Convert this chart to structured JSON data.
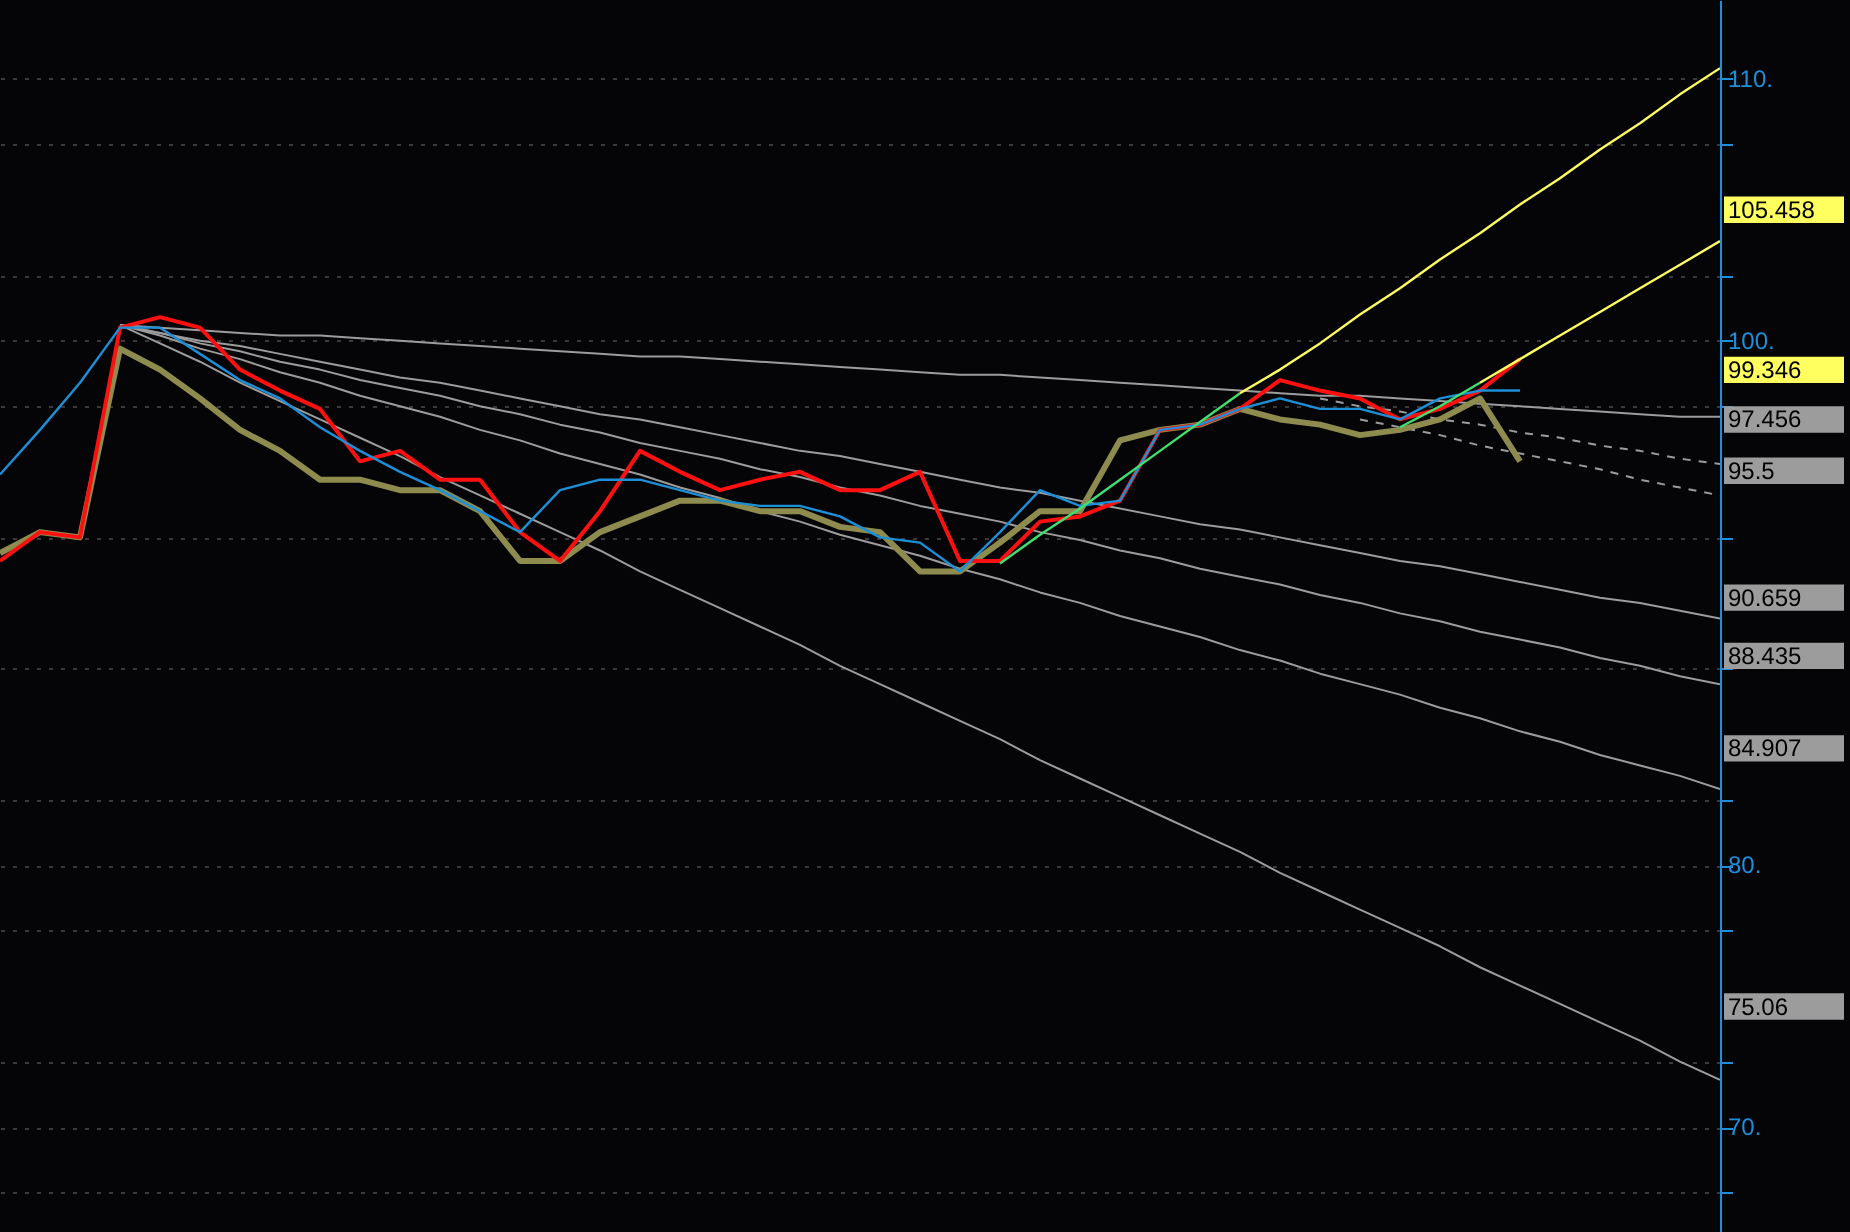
{
  "chart_data": {
    "type": "line",
    "categories": [
      null,
      null,
      null,
      null,
      null,
      null,
      null,
      null,
      null,
      null,
      null,
      null,
      null,
      null,
      null,
      null,
      null,
      null,
      null,
      null,
      null,
      null,
      null,
      null,
      null,
      null,
      null,
      null,
      null,
      null,
      null,
      null,
      null,
      null,
      null,
      null,
      null,
      null,
      null,
      null,
      null,
      null,
      null,
      null
    ],
    "ylim": [
      66,
      113
    ],
    "yticks": [
      {
        "value": 67.5,
        "label": null
      },
      {
        "value": 70,
        "label": "70."
      },
      {
        "value": 72.5,
        "label": null
      },
      {
        "value": 77.5,
        "label": null
      },
      {
        "value": 80,
        "label": "80."
      },
      {
        "value": 82.5,
        "label": null
      },
      {
        "value": 87.5,
        "label": null
      },
      {
        "value": 92.5,
        "label": null
      },
      {
        "value": 97.5,
        "label": null
      },
      {
        "value": 100,
        "label": "100."
      },
      {
        "value": 102.5,
        "label": null
      },
      {
        "value": 107.5,
        "label": null
      },
      {
        "value": 110,
        "label": "110."
      }
    ],
    "grid": "y",
    "tick_labels": "y",
    "series": [
      {
        "color": "#9c9c9c",
        "values": [
          null,
          null,
          null,
          100.6,
          100.5,
          100.4,
          100.3,
          100.2,
          100.2,
          100.1,
          100.0,
          99.9,
          99.8,
          99.7,
          99.6,
          99.5,
          99.4,
          99.4,
          99.3,
          99.2,
          99.1,
          99.0,
          98.9,
          98.8,
          98.7,
          98.7,
          98.6,
          98.5,
          98.4,
          98.3,
          98.2,
          98.1,
          98.0,
          97.9,
          97.9,
          97.8,
          97.7,
          97.6,
          97.5,
          97.4,
          97.3,
          97.2,
          97.1,
          97.1
        ]
      },
      {
        "color": "#9c9c9c",
        "values": [
          null,
          null,
          null,
          100.6,
          100.3,
          100.0,
          99.8,
          99.5,
          99.2,
          98.9,
          98.6,
          98.4,
          98.1,
          97.8,
          97.5,
          97.2,
          97.0,
          96.7,
          96.4,
          96.1,
          95.8,
          95.6,
          95.3,
          95.0,
          94.7,
          94.4,
          94.2,
          93.9,
          93.6,
          93.3,
          93.0,
          92.8,
          92.5,
          92.2,
          91.9,
          91.6,
          91.4,
          91.1,
          90.8,
          90.5,
          90.2,
          90.0,
          89.7,
          89.4
        ]
      },
      {
        "color": "#9c9c9c",
        "values": [
          null,
          null,
          null,
          100.6,
          100.3,
          99.9,
          99.6,
          99.2,
          98.9,
          98.5,
          98.2,
          97.9,
          97.5,
          97.2,
          96.8,
          96.5,
          96.1,
          95.8,
          95.5,
          95.1,
          94.8,
          94.4,
          94.1,
          93.7,
          93.4,
          93.1,
          92.7,
          92.4,
          92.0,
          91.7,
          91.3,
          91.0,
          90.7,
          90.3,
          90.0,
          89.6,
          89.3,
          88.9,
          88.6,
          88.3,
          87.9,
          87.6,
          87.2,
          86.9
        ]
      },
      {
        "color": "#9c9c9c",
        "values": [
          null,
          null,
          null,
          100.6,
          100.2,
          99.7,
          99.3,
          98.8,
          98.4,
          97.9,
          97.5,
          97.1,
          96.6,
          96.2,
          95.7,
          95.3,
          94.9,
          94.4,
          94.0,
          93.5,
          93.1,
          92.6,
          92.2,
          91.8,
          91.3,
          90.9,
          90.4,
          90.0,
          89.5,
          89.1,
          88.7,
          88.2,
          87.8,
          87.3,
          86.9,
          86.5,
          86.0,
          85.6,
          85.1,
          84.7,
          84.2,
          83.8,
          83.4,
          82.9
        ]
      },
      {
        "color": "#9c9c9c",
        "values": [
          null,
          null,
          null,
          100.6,
          99.9,
          99.2,
          98.4,
          97.7,
          97.0,
          96.3,
          95.6,
          94.8,
          94.1,
          93.4,
          92.7,
          92.0,
          91.2,
          90.5,
          89.8,
          89.1,
          88.4,
          87.6,
          86.9,
          86.2,
          85.5,
          84.8,
          84.0,
          83.3,
          82.6,
          81.9,
          81.2,
          80.5,
          79.7,
          79.0,
          78.3,
          77.6,
          76.9,
          76.1,
          75.4,
          74.7,
          74.0,
          73.3,
          72.5,
          71.8
        ]
      },
      {
        "color": "#9c9c9c",
        "line_style": "dashed",
        "values": [
          null,
          null,
          null,
          null,
          null,
          null,
          null,
          null,
          null,
          null,
          null,
          null,
          null,
          null,
          null,
          null,
          null,
          null,
          null,
          null,
          null,
          null,
          null,
          null,
          null,
          null,
          null,
          null,
          null,
          null,
          null,
          null,
          null,
          97.8,
          97.5,
          97.3,
          97.0,
          96.8,
          96.5,
          96.3,
          96.0,
          95.8,
          95.5,
          95.3
        ]
      },
      {
        "color": "#9c9c9c",
        "line_style": "dashed",
        "values": [
          null,
          null,
          null,
          null,
          null,
          null,
          null,
          null,
          null,
          null,
          null,
          null,
          null,
          null,
          null,
          null,
          null,
          null,
          null,
          null,
          null,
          null,
          null,
          null,
          null,
          null,
          null,
          null,
          null,
          null,
          null,
          null,
          null,
          null,
          97.0,
          96.7,
          96.4,
          96.0,
          95.7,
          95.4,
          95.1,
          94.7,
          94.4,
          94.1
        ]
      },
      {
        "color": "#8e8b4e",
        "values": [
          91.9,
          92.7,
          92.5,
          99.7,
          98.9,
          97.8,
          96.6,
          95.8,
          94.7,
          94.7,
          94.3,
          94.3,
          93.5,
          91.6,
          91.6,
          92.7,
          93.3,
          93.9,
          93.9,
          93.5,
          93.5,
          92.9,
          92.7,
          91.2,
          91.2,
          92.3,
          93.5,
          93.5,
          96.2,
          96.6,
          96.8,
          97.4,
          97.0,
          96.8,
          96.4,
          96.6,
          97.0,
          97.8,
          95.4,
          null,
          null,
          null,
          null,
          null
        ]
      },
      {
        "color": "#ff1010",
        "values": [
          91.6,
          92.7,
          92.5,
          100.5,
          100.9,
          100.5,
          98.9,
          98.1,
          97.4,
          95.4,
          95.8,
          94.7,
          94.7,
          92.7,
          91.6,
          93.5,
          95.8,
          95.0,
          94.3,
          94.7,
          95.0,
          94.3,
          94.3,
          95.0,
          91.6,
          91.6,
          93.1,
          93.3,
          93.9,
          96.6,
          96.8,
          97.4,
          98.5,
          98.1,
          97.8,
          97.0,
          97.4,
          98.1,
          99.3,
          null,
          null,
          null,
          null,
          null
        ]
      },
      {
        "color": "#1c8fd6",
        "values": [
          94.9,
          96.6,
          98.4,
          100.5,
          100.5,
          99.5,
          98.5,
          97.8,
          96.7,
          95.8,
          95.0,
          94.3,
          93.5,
          92.7,
          94.3,
          94.7,
          94.7,
          94.3,
          93.9,
          93.7,
          93.7,
          93.3,
          92.5,
          92.3,
          91.2,
          92.7,
          94.3,
          93.7,
          93.9,
          96.6,
          96.8,
          97.4,
          97.8,
          97.4,
          97.4,
          97.0,
          97.8,
          98.1,
          98.1,
          null,
          null,
          null,
          null,
          null
        ]
      },
      {
        "color": "#40e070",
        "values": [
          null,
          null,
          null,
          null,
          null,
          null,
          null,
          null,
          null,
          null,
          null,
          null,
          null,
          null,
          null,
          null,
          null,
          null,
          null,
          null,
          null,
          null,
          null,
          null,
          null,
          91.5,
          92.6,
          93.6,
          94.7,
          95.8,
          96.9,
          98.0,
          null,
          null,
          null,
          96.7,
          97.5,
          98.4,
          null,
          null,
          null,
          null,
          null,
          null
        ]
      },
      {
        "color": "#ffff60",
        "values": [
          null,
          null,
          null,
          null,
          null,
          null,
          null,
          null,
          null,
          null,
          null,
          null,
          null,
          null,
          null,
          null,
          null,
          null,
          null,
          null,
          null,
          null,
          null,
          null,
          null,
          null,
          null,
          null,
          null,
          null,
          null,
          98.0,
          98.9,
          99.9,
          101.0,
          102.0,
          103.1,
          104.1,
          105.2,
          106.2,
          107.3,
          108.3,
          109.4,
          110.4
        ]
      },
      {
        "color": "#ffff60",
        "values": [
          null,
          null,
          null,
          null,
          null,
          null,
          null,
          null,
          null,
          null,
          null,
          null,
          null,
          null,
          null,
          null,
          null,
          null,
          null,
          null,
          null,
          null,
          null,
          null,
          null,
          null,
          null,
          null,
          null,
          null,
          null,
          null,
          null,
          null,
          null,
          null,
          null,
          98.4,
          99.3,
          100.2,
          101.1,
          102.0,
          102.9,
          103.8
        ]
      }
    ],
    "annotations": [
      "105.458",
      "99.346",
      "97.456",
      "95.5",
      "90.659",
      "88.435",
      "84.907",
      "75.06"
    ]
  }
}
